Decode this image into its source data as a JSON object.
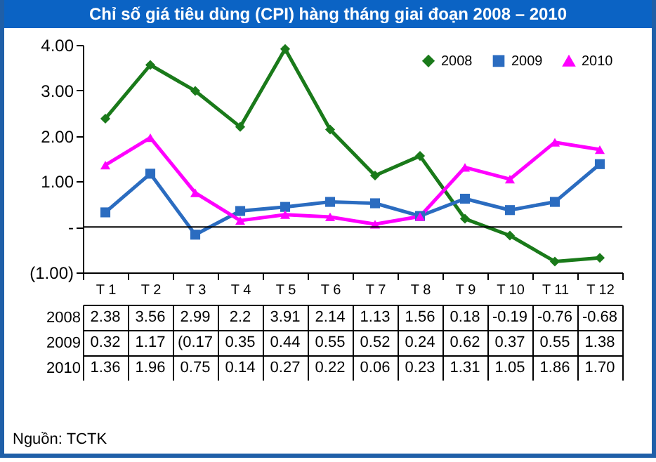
{
  "chart_data": {
    "type": "line",
    "title": "Chỉ số giá tiêu dùng (CPI) hàng tháng giai đoạn 2008 – 2010",
    "categories": [
      "T 1",
      "T 2",
      "T 3",
      "T 4",
      "T 5",
      "T 6",
      "T 7",
      "T 8",
      "T 9",
      "T 10",
      "T 11",
      "T 12"
    ],
    "series": [
      {
        "name": "2008",
        "color": "#1a7a1a",
        "marker": "diamond",
        "values": [
          2.38,
          3.56,
          2.99,
          2.2,
          3.91,
          2.14,
          1.13,
          1.56,
          0.18,
          -0.19,
          -0.76,
          -0.68
        ],
        "value_labels": [
          "2.38",
          "3.56",
          "2.99",
          "2.2",
          "3.91",
          "2.14",
          "1.13",
          "1.56",
          "0.18",
          "-0.19",
          "-0.76",
          "-0.68"
        ]
      },
      {
        "name": "2009",
        "color": "#2b6cc0",
        "marker": "square",
        "values": [
          0.32,
          1.17,
          -0.17,
          0.35,
          0.44,
          0.55,
          0.52,
          0.24,
          0.62,
          0.37,
          0.55,
          1.38
        ],
        "value_labels": [
          "0.32",
          "1.17",
          "(0.17",
          "0.35",
          "0.44",
          "0.55",
          "0.52",
          "0.24",
          "0.62",
          "0.37",
          "0.55",
          "1.38"
        ]
      },
      {
        "name": "2010",
        "color": "#ff00ff",
        "marker": "triangle",
        "values": [
          1.36,
          1.96,
          0.75,
          0.14,
          0.27,
          0.22,
          0.06,
          0.23,
          1.31,
          1.05,
          1.86,
          1.7
        ],
        "value_labels": [
          "1.36",
          "1.96",
          "0.75",
          "0.14",
          "0.27",
          "0.22",
          "0.06",
          "0.23",
          "1.31",
          "1.05",
          "1.86",
          "1.70"
        ]
      }
    ],
    "ylim": [
      -1,
      4
    ],
    "yticks": [
      {
        "value": -1,
        "label": "(1.00)"
      },
      {
        "value": 0,
        "label": "-"
      },
      {
        "value": 1,
        "label": "1.00"
      },
      {
        "value": 2,
        "label": "2.00"
      },
      {
        "value": 3,
        "label": "3.00"
      },
      {
        "value": 4,
        "label": "4.00"
      }
    ],
    "ref_lines": [
      {
        "axis": "y",
        "value": 0,
        "color": "#000000"
      }
    ],
    "legend": "top right",
    "annotations": [
      "Nguồn: TCTK"
    ]
  }
}
